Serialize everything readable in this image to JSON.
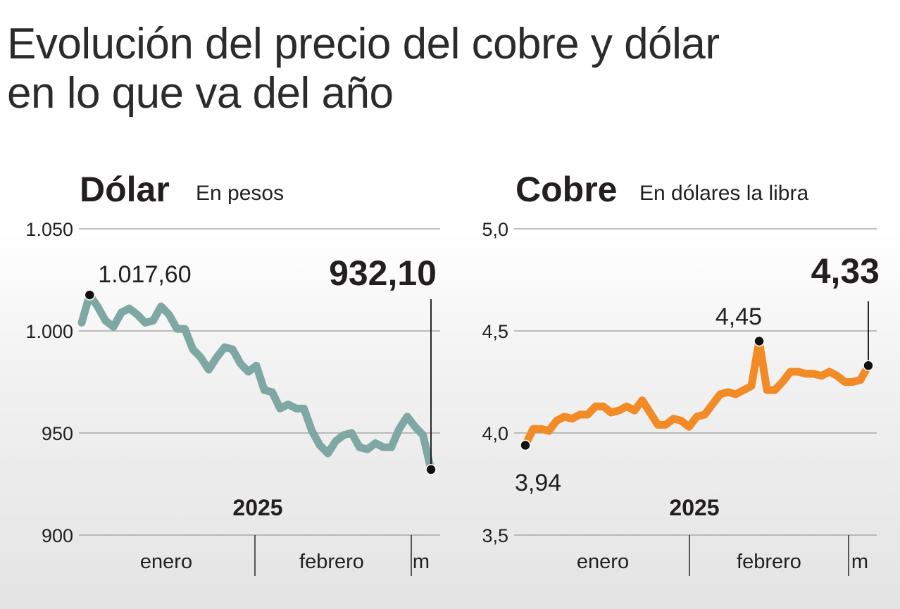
{
  "title": {
    "line1": "Evolución del precio del cobre y dólar",
    "line2": "en lo que va del año"
  },
  "colors": {
    "dolar_line": "#7fa8a4",
    "cobre_line": "#f28a26",
    "grid": "#9a9a9a",
    "marker": "#111111"
  },
  "chart_data": [
    {
      "type": "line",
      "title": "Dólar",
      "subtitle": "En pesos",
      "ylim": [
        900,
        1050
      ],
      "yticks": [
        900,
        950,
        1000,
        1050
      ],
      "ytick_labels": [
        "900",
        "950",
        "1.000",
        "1.050"
      ],
      "year_label": "2025",
      "x_labels": [
        "enero",
        "febrero",
        "m"
      ],
      "series": [
        {
          "values": [
            1004,
            1017.6,
            1012,
            1005,
            1002,
            1009,
            1011,
            1008,
            1004,
            1005,
            1012,
            1008,
            1001,
            1001,
            991,
            987,
            981,
            987,
            992,
            991,
            984,
            980,
            983,
            971,
            970,
            962,
            964,
            962,
            962,
            951,
            944,
            940,
            946,
            949,
            950,
            943,
            942,
            945,
            943,
            943,
            952,
            958,
            953,
            949,
            932.1
          ]
        }
      ],
      "annotations": [
        {
          "label": "1.017,60",
          "value": 1017.6,
          "bold": false
        },
        {
          "label": "932,10",
          "value": 932.1,
          "bold": true
        }
      ]
    },
    {
      "type": "line",
      "title": "Cobre",
      "subtitle": "En dólares la libra",
      "ylim": [
        3.5,
        5.0
      ],
      "yticks": [
        3.5,
        4.0,
        4.5,
        5.0
      ],
      "ytick_labels": [
        "3,5",
        "4,0",
        "4,5",
        "5,0"
      ],
      "year_label": "2025",
      "x_labels": [
        "enero",
        "febrero",
        "m"
      ],
      "series": [
        {
          "values": [
            3.94,
            4.02,
            4.02,
            4.01,
            4.06,
            4.08,
            4.07,
            4.09,
            4.09,
            4.13,
            4.13,
            4.1,
            4.11,
            4.13,
            4.11,
            4.16,
            4.1,
            4.04,
            4.04,
            4.07,
            4.06,
            4.03,
            4.08,
            4.09,
            4.14,
            4.19,
            4.2,
            4.19,
            4.21,
            4.23,
            4.45,
            4.21,
            4.21,
            4.25,
            4.3,
            4.3,
            4.29,
            4.29,
            4.28,
            4.3,
            4.28,
            4.25,
            4.25,
            4.26,
            4.33
          ]
        }
      ],
      "annotations": [
        {
          "label": "3,94",
          "value": 3.94,
          "bold": false
        },
        {
          "label": "4,45",
          "value": 4.45,
          "bold": false
        },
        {
          "label": "4,33",
          "value": 4.33,
          "bold": true
        }
      ]
    }
  ]
}
